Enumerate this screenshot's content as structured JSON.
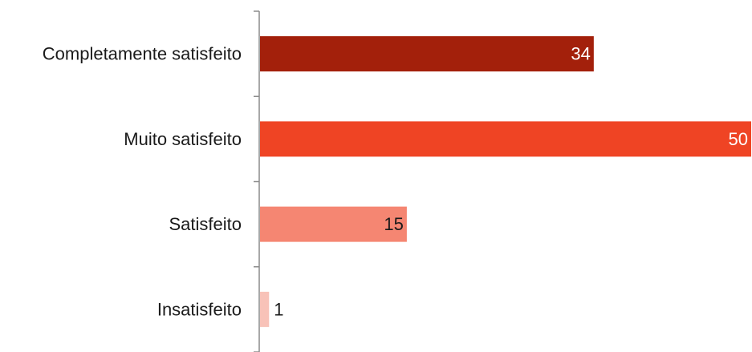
{
  "chart_data": {
    "type": "bar",
    "orientation": "horizontal",
    "categories": [
      "Completamente satisfeito",
      "Muito satisfeito",
      "Satisfeito",
      "Insatisfeito"
    ],
    "values": [
      34,
      50,
      15,
      1
    ],
    "value_labels": [
      "34",
      "50",
      "15",
      "1"
    ],
    "colors": [
      "#a3200b",
      "#ef4424",
      "#f58672",
      "#f8c2b8"
    ],
    "label_colors": [
      "#ffffff",
      "#ffffff",
      "#1a1a1a",
      "#1a1a1a"
    ],
    "xlim": [
      0,
      50
    ],
    "axis_color": "#8c8c8c",
    "grid": false,
    "legend": "none"
  }
}
